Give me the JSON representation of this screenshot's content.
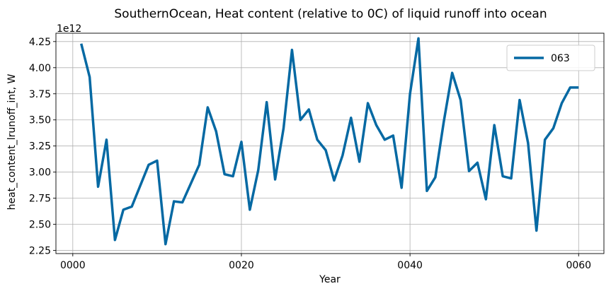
{
  "chart_data": {
    "type": "line",
    "title": "SouthernOcean, Heat content (relative to 0C) of liquid runoff into ocean",
    "xlabel": "Year",
    "ylabel": "heat_content_lrunoff_int, W",
    "y_offset_label": "1e12",
    "xlim": [
      -2,
      63
    ],
    "ylim": [
      2.22,
      4.33
    ],
    "x_ticks": [
      {
        "value": 0,
        "label": "0000"
      },
      {
        "value": 20,
        "label": "0020"
      },
      {
        "value": 40,
        "label": "0040"
      },
      {
        "value": 60,
        "label": "0060"
      }
    ],
    "y_ticks": [
      {
        "value": 2.25,
        "label": "2.25"
      },
      {
        "value": 2.5,
        "label": "2.50"
      },
      {
        "value": 2.75,
        "label": "2.75"
      },
      {
        "value": 3.0,
        "label": "3.00"
      },
      {
        "value": 3.25,
        "label": "3.25"
      },
      {
        "value": 3.5,
        "label": "3.50"
      },
      {
        "value": 3.75,
        "label": "3.75"
      },
      {
        "value": 4.0,
        "label": "4.00"
      },
      {
        "value": 4.25,
        "label": "4.25"
      }
    ],
    "grid": true,
    "legend_position": "top-right",
    "series": [
      {
        "name": "063",
        "color": "#0569a3",
        "x": [
          1,
          2,
          3,
          4,
          5,
          6,
          7,
          8,
          9,
          10,
          11,
          12,
          13,
          14,
          15,
          16,
          17,
          18,
          19,
          20,
          21,
          22,
          23,
          24,
          25,
          26,
          27,
          28,
          29,
          30,
          31,
          32,
          33,
          34,
          35,
          36,
          37,
          38,
          39,
          40,
          41,
          42,
          43,
          44,
          45,
          46,
          47,
          48,
          49,
          50,
          51,
          52,
          53,
          54,
          55,
          56,
          57,
          58,
          59,
          60
        ],
        "values": [
          4.23,
          3.91,
          2.86,
          3.31,
          2.35,
          2.64,
          2.67,
          2.87,
          3.07,
          3.11,
          2.31,
          2.72,
          2.71,
          2.89,
          3.07,
          3.62,
          3.39,
          2.98,
          2.96,
          3.29,
          2.64,
          3.02,
          3.67,
          2.93,
          3.42,
          4.17,
          3.5,
          3.6,
          3.31,
          3.21,
          2.92,
          3.16,
          3.52,
          3.1,
          3.66,
          3.45,
          3.31,
          3.35,
          2.85,
          3.75,
          4.28,
          2.82,
          2.95,
          3.48,
          3.95,
          3.69,
          3.01,
          3.09,
          2.74,
          3.45,
          2.96,
          2.94,
          3.69,
          3.28,
          2.44,
          3.31,
          3.42,
          3.66,
          3.81,
          3.81
        ]
      }
    ]
  }
}
